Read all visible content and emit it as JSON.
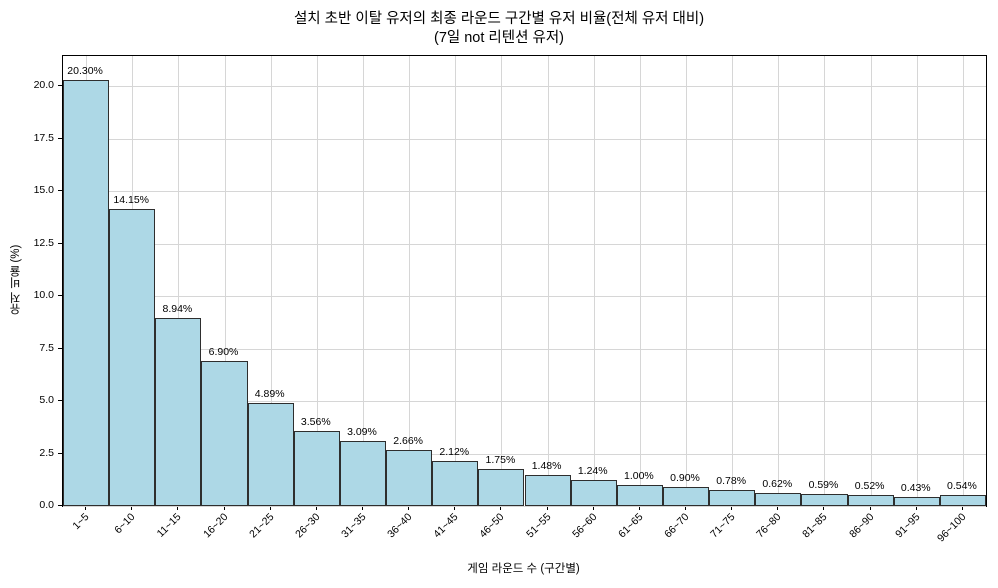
{
  "chart_data": {
    "type": "bar",
    "title": "설치 초반 이탈 유저의 최종 라운드 구간별 유저 비율(전체 유저 대비)",
    "subtitle": "(7일 not 리텐션 유저)",
    "xlabel": "게임 라운드 수 (구간별)",
    "ylabel": "유저 비율 (%)",
    "categories": [
      "1~5",
      "6~10",
      "11~15",
      "16~20",
      "21~25",
      "26~30",
      "31~35",
      "36~40",
      "41~45",
      "46~50",
      "51~55",
      "56~60",
      "61~65",
      "66~70",
      "71~75",
      "76~80",
      "81~85",
      "86~90",
      "91~95",
      "96~100"
    ],
    "values": [
      20.3,
      14.15,
      8.94,
      6.9,
      4.89,
      3.56,
      3.09,
      2.66,
      2.12,
      1.75,
      1.48,
      1.24,
      1.0,
      0.9,
      0.78,
      0.62,
      0.59,
      0.52,
      0.43,
      0.54
    ],
    "value_label_suffix": "%",
    "yticks": [
      0.0,
      2.5,
      5.0,
      7.5,
      10.0,
      12.5,
      15.0,
      17.5,
      20.0
    ],
    "ylim": [
      0,
      21.43
    ],
    "grid": true,
    "legend": "none",
    "bar_color": "#add8e6",
    "bar_edge_color": "#2e2e2e"
  }
}
